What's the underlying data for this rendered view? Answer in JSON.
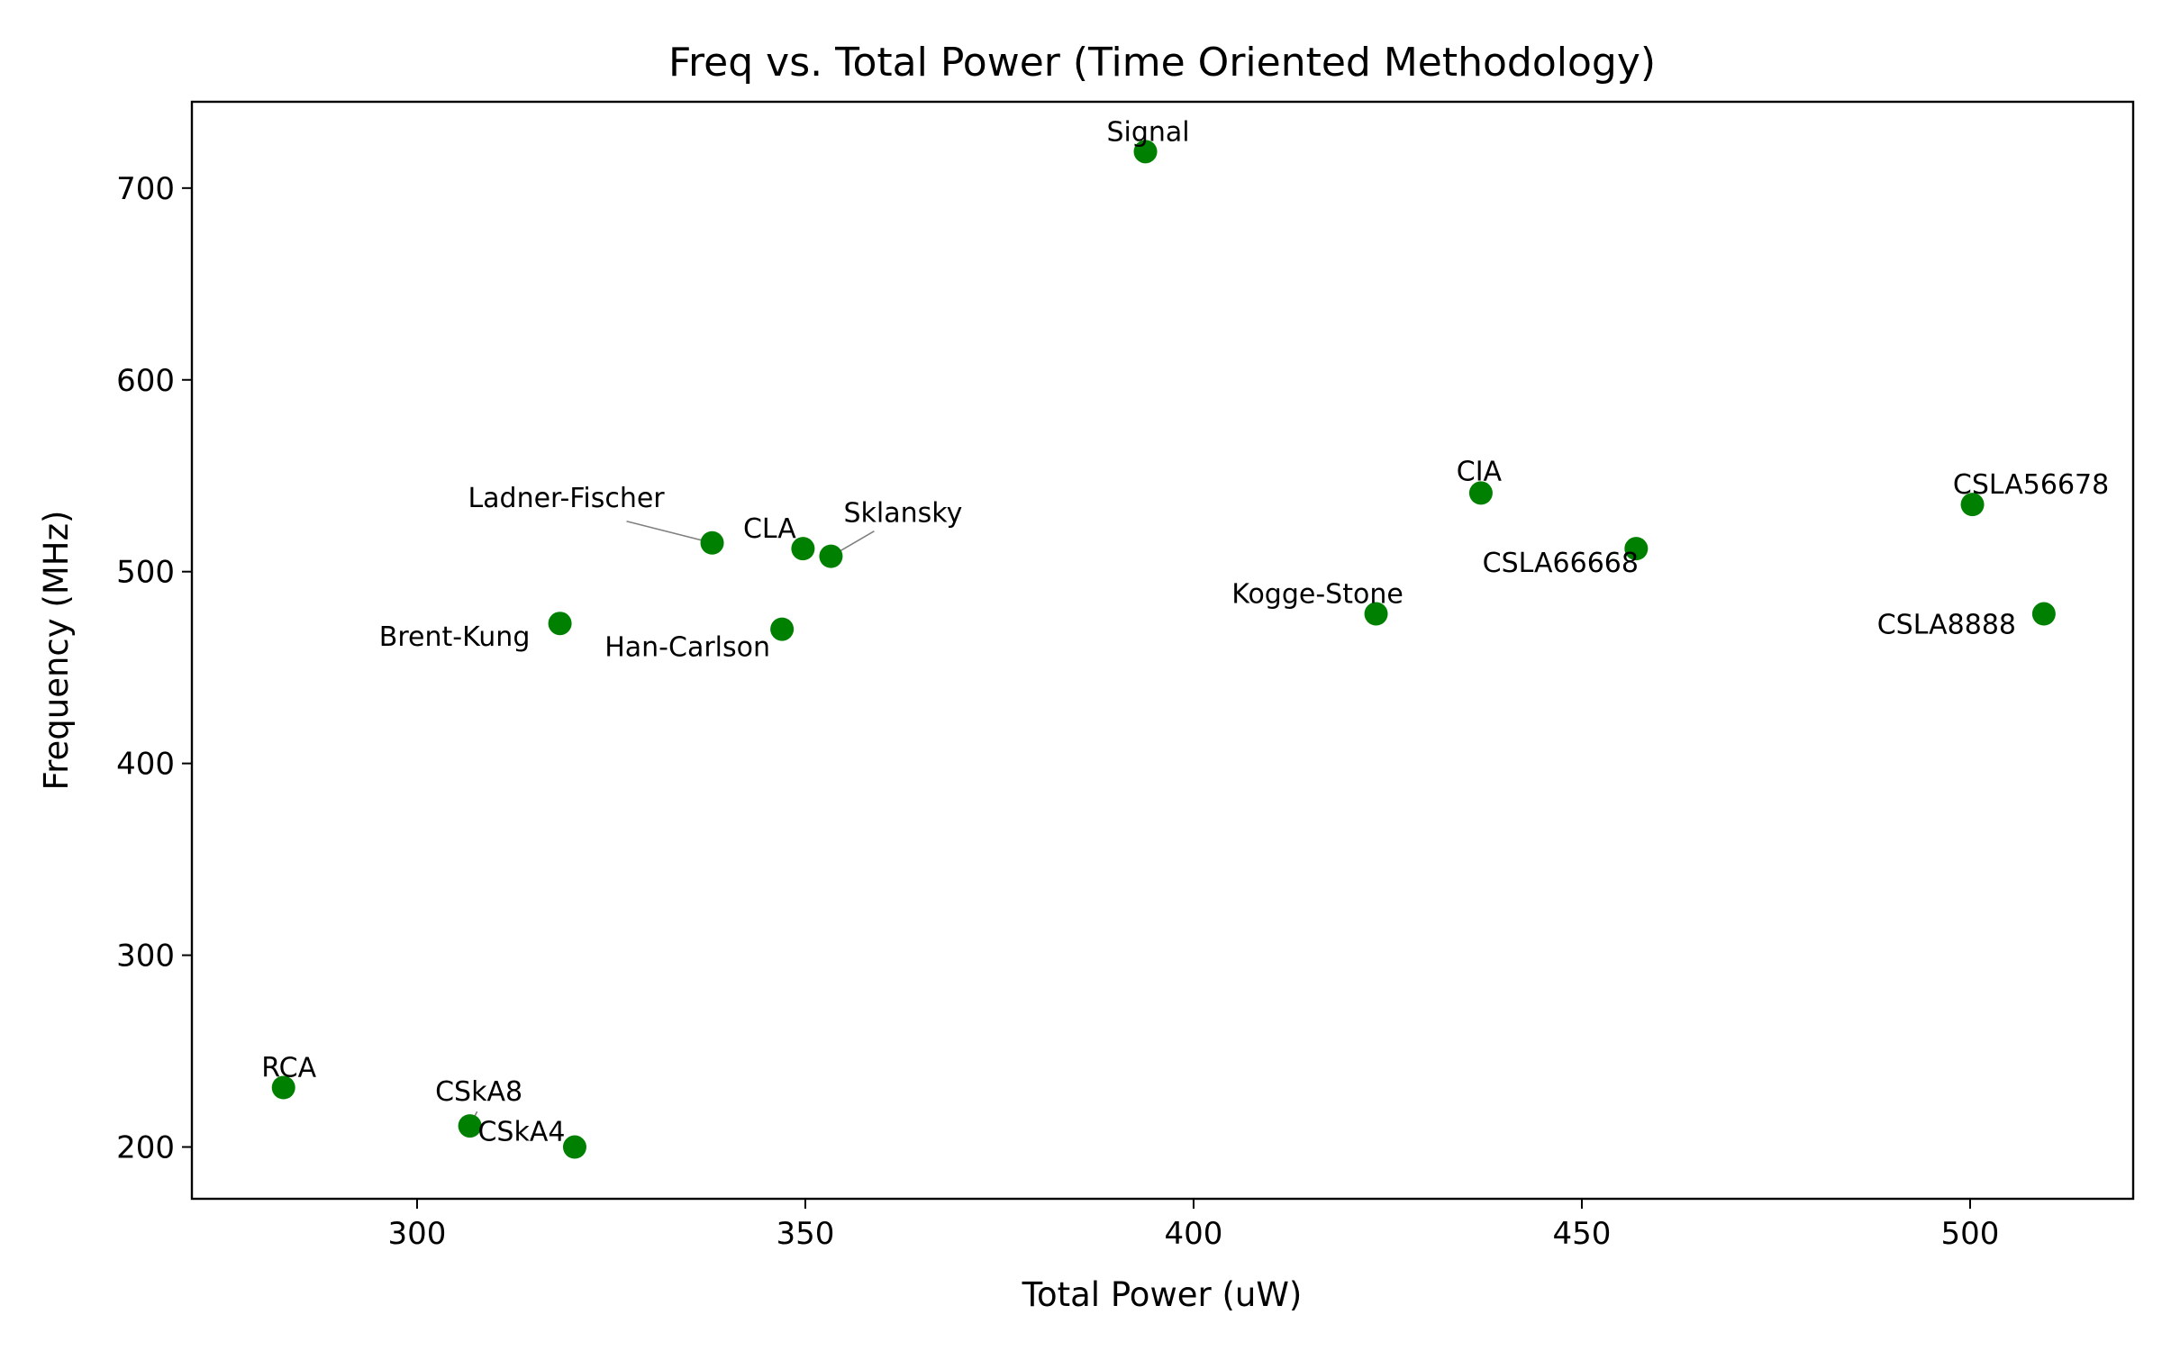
{
  "chart_data": {
    "type": "scatter",
    "title": "Freq vs. Total Power (Time Oriented Methodology)",
    "xlabel": "Total Power (uW)",
    "ylabel": "Frequency (MHz)",
    "xlim": [
      271,
      521
    ],
    "ylim": [
      173,
      745
    ],
    "xticks": [
      300,
      350,
      400,
      450,
      500
    ],
    "yticks": [
      200,
      300,
      400,
      500,
      600,
      700
    ],
    "grid": false,
    "marker_color": "#008000",
    "points": [
      {
        "label": "Signal",
        "x": 393.8,
        "y": 719
      },
      {
        "label": "CIA",
        "x": 437.0,
        "y": 541
      },
      {
        "label": "CSLA56678",
        "x": 500.3,
        "y": 535
      },
      {
        "label": "CSLA66668",
        "x": 457.0,
        "y": 512
      },
      {
        "label": "CSLA8888",
        "x": 509.5,
        "y": 478
      },
      {
        "label": "Kogge-Stone",
        "x": 423.5,
        "y": 478
      },
      {
        "label": "Ladner-Fischer",
        "x": 338.0,
        "y": 515
      },
      {
        "label": "CLA",
        "x": 349.7,
        "y": 512
      },
      {
        "label": "Sklansky",
        "x": 353.3,
        "y": 508
      },
      {
        "label": "Brent-Kung",
        "x": 318.4,
        "y": 473
      },
      {
        "label": "Han-Carlson",
        "x": 347.0,
        "y": 470
      },
      {
        "label": "RCA",
        "x": 282.8,
        "y": 231
      },
      {
        "label": "CSkA8",
        "x": 306.8,
        "y": 211
      },
      {
        "label": "CSkA4",
        "x": 320.3,
        "y": 200
      }
    ]
  }
}
